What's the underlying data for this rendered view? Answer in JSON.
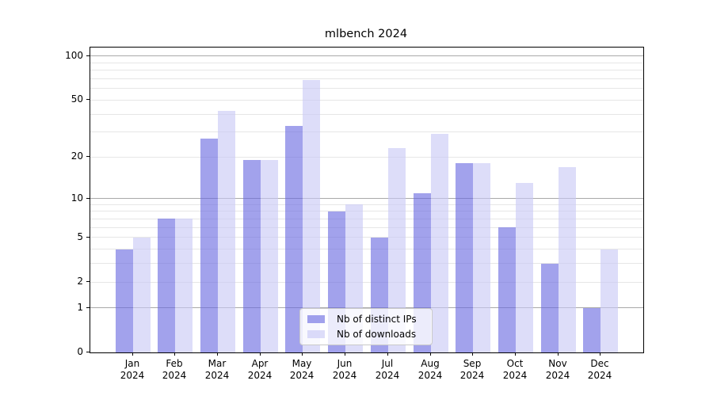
{
  "figure": {
    "background": "#ffffff"
  },
  "chart_data": {
    "type": "bar",
    "title": "mlbench 2024",
    "categories": [
      "Jan",
      "Feb",
      "Mar",
      "Apr",
      "May",
      "Jun",
      "Jul",
      "Aug",
      "Sep",
      "Oct",
      "Nov",
      "Dec"
    ],
    "year_suffix": "2024",
    "series": [
      {
        "key": "ips",
        "name": "Nb of distinct IPs",
        "color": "rgba(105,105,225,0.62)",
        "values": [
          4,
          7,
          27,
          19,
          33,
          8,
          5,
          11,
          18,
          6,
          3,
          1
        ]
      },
      {
        "key": "downloads",
        "name": "Nb of downloads",
        "color": "rgba(200,200,245,0.62)",
        "values": [
          5,
          7,
          42,
          19,
          69,
          9,
          23,
          29,
          18,
          13,
          17,
          4
        ]
      }
    ],
    "y_scale": "log10(1+value)",
    "ylim": [
      0,
      114.6
    ],
    "y_tick_labels": [
      100,
      50,
      20,
      10,
      5,
      2,
      1,
      0
    ],
    "grid_major_values": [
      1,
      10,
      100
    ],
    "grid_minor_values": [
      2,
      3,
      4,
      5,
      6,
      7,
      8,
      9,
      20,
      30,
      40,
      50,
      60,
      70,
      80,
      90
    ],
    "grid": "horizontal",
    "legend_position": "lower-center-inside"
  },
  "colors": {
    "grid_major": "#a9a9a9",
    "grid_minor": "#e6e6e6",
    "axis": "#000000",
    "legend_border": "#c9c9c9",
    "legend_background": "rgba(255,255,255,0.8)"
  }
}
